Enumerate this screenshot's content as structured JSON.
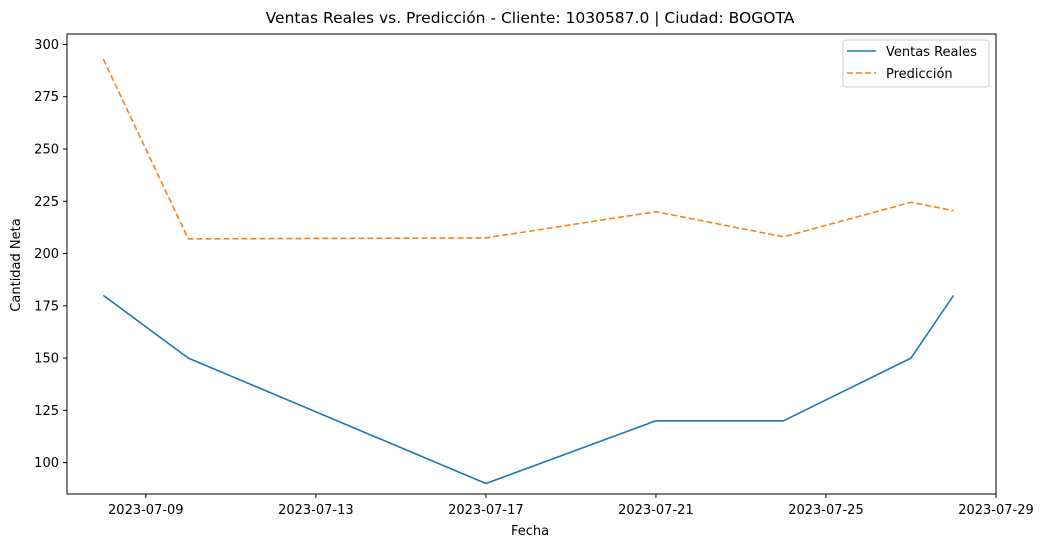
{
  "chart_data": {
    "type": "line",
    "title": "Ventas Reales vs. Predicción - Cliente: 1030587.0 | Ciudad: BOGOTA",
    "xlabel": "Fecha",
    "ylabel": "Cantidad Neta",
    "x_ticks": [
      "2023-07-09",
      "2023-07-13",
      "2023-07-17",
      "2023-07-21",
      "2023-07-25",
      "2023-07-29"
    ],
    "y_ticks": [
      100,
      125,
      150,
      175,
      200,
      225,
      250,
      275,
      300
    ],
    "xlim": [
      "2023-07-07T03:30",
      "2023-07-29"
    ],
    "ylim": [
      85,
      305
    ],
    "grid": false,
    "legend_position": "top-right",
    "series": [
      {
        "name": "Ventas Reales",
        "color": "#1f77b4",
        "style": "solid",
        "x": [
          "2023-07-08",
          "2023-07-10",
          "2023-07-17",
          "2023-07-21",
          "2023-07-24",
          "2023-07-27",
          "2023-07-28"
        ],
        "values": [
          180,
          150,
          90,
          120,
          120,
          150,
          180
        ]
      },
      {
        "name": "Predicción",
        "color": "#ff7f0e",
        "style": "dashed",
        "x": [
          "2023-07-08",
          "2023-07-10",
          "2023-07-17",
          "2023-07-21",
          "2023-07-24",
          "2023-07-27",
          "2023-07-28"
        ],
        "values": [
          293,
          207,
          207.5,
          220,
          208,
          224.5,
          220.5
        ]
      }
    ]
  }
}
